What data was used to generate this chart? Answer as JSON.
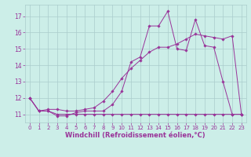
{
  "bg_color": "#cceee8",
  "grid_color": "#aacccc",
  "line_color": "#993399",
  "xlabel": "Windchill (Refroidissement éolien,°C)",
  "xlabel_color": "#993399",
  "tick_color": "#993399",
  "ylim": [
    10.5,
    17.7
  ],
  "xlim": [
    -0.5,
    23.5
  ],
  "yticks": [
    11,
    12,
    13,
    14,
    15,
    16,
    17
  ],
  "xticks": [
    0,
    1,
    2,
    3,
    4,
    5,
    6,
    7,
    8,
    9,
    10,
    11,
    12,
    13,
    14,
    15,
    16,
    17,
    18,
    19,
    20,
    21,
    22,
    23
  ],
  "series": [
    {
      "x": [
        0,
        1,
        2,
        3,
        4,
        5,
        6,
        7,
        8,
        9,
        10,
        11,
        12,
        13,
        14,
        15,
        16,
        17,
        18,
        19,
        20,
        21,
        22,
        23
      ],
      "y": [
        12.0,
        11.2,
        11.2,
        10.9,
        10.9,
        11.1,
        11.2,
        11.2,
        11.2,
        11.6,
        12.4,
        14.2,
        14.5,
        16.4,
        16.4,
        17.3,
        15.0,
        14.9,
        16.8,
        15.2,
        15.1,
        13.0,
        11.0,
        11.0
      ]
    },
    {
      "x": [
        0,
        1,
        2,
        3,
        4,
        5,
        6,
        7,
        8,
        9,
        10,
        11,
        12,
        13,
        14,
        15,
        16,
        17,
        18,
        19,
        20,
        21,
        22,
        23
      ],
      "y": [
        12.0,
        11.2,
        11.3,
        11.3,
        11.2,
        11.2,
        11.3,
        11.4,
        11.8,
        12.4,
        13.2,
        13.8,
        14.3,
        14.8,
        15.1,
        15.1,
        15.3,
        15.6,
        15.9,
        15.8,
        15.7,
        15.6,
        15.8,
        11.0
      ]
    },
    {
      "x": [
        0,
        1,
        2,
        3,
        4,
        5,
        6,
        7,
        8,
        9,
        10,
        11,
        12,
        13,
        14,
        15,
        16,
        17,
        18,
        19,
        20,
        21,
        22,
        23
      ],
      "y": [
        12.0,
        11.2,
        11.2,
        11.0,
        11.0,
        11.0,
        11.0,
        11.0,
        11.0,
        11.0,
        11.0,
        11.0,
        11.0,
        11.0,
        11.0,
        11.0,
        11.0,
        11.0,
        11.0,
        11.0,
        11.0,
        11.0,
        11.0,
        11.0
      ]
    }
  ]
}
